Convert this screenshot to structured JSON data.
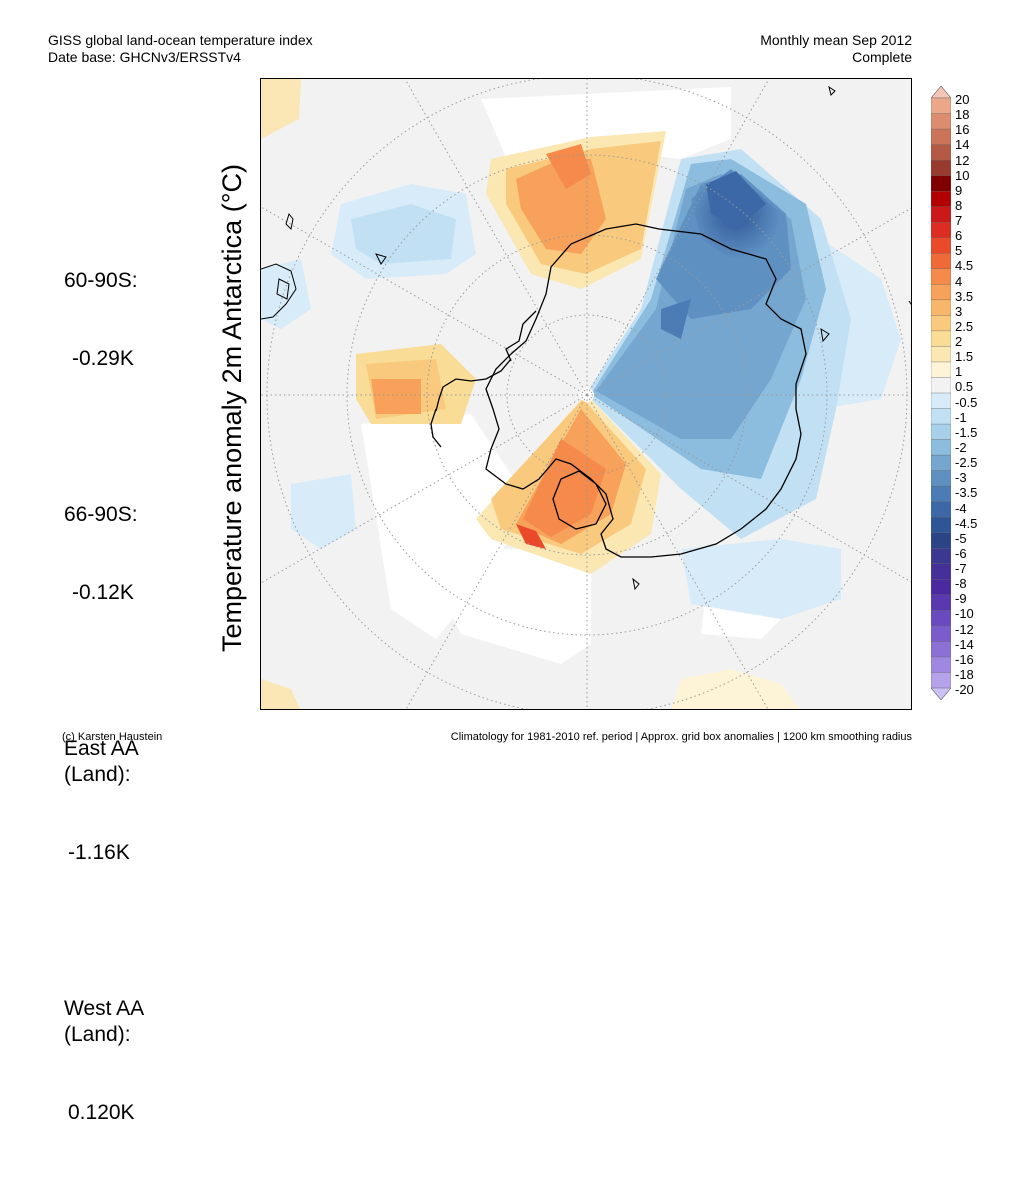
{
  "header": {
    "title_line1": "GISS global land-ocean temperature index",
    "title_line2": "Date base: GHCNv3/ERSSTv4",
    "period_line1": "Monthly mean Sep 2012",
    "period_line2": "Complete"
  },
  "y_axis_label": "Temperature anomaly 2m Antarctica (°C)",
  "stats": [
    {
      "label": "60-90S:",
      "value": "-0.29K"
    },
    {
      "label": "66-90S:",
      "value": "-0.12K"
    },
    {
      "label": "East AA\n(Land):",
      "value": "-1.16K"
    },
    {
      "label": "West AA\n(Land):",
      "value": "0.120K"
    }
  ],
  "colorbar": {
    "labels": [
      "20",
      "18",
      "16",
      "14",
      "12",
      "10",
      "9",
      "8",
      "7",
      "6",
      "5",
      "4.5",
      "4",
      "3.5",
      "3",
      "2.5",
      "2",
      "1.5",
      "1",
      "0.5",
      "-0.5",
      "-1",
      "-1.5",
      "-2",
      "-2.5",
      "-3",
      "-3.5",
      "-4",
      "-4.5",
      "-5",
      "-6",
      "-7",
      "-8",
      "-9",
      "-10",
      "-12",
      "-14",
      "-16",
      "-18",
      "-20"
    ],
    "colors": [
      "#f4c6b8",
      "#eaa78a",
      "#dc8d6e",
      "#cb7458",
      "#b45a44",
      "#9a3a2e",
      "#800000",
      "#b30000",
      "#cc1818",
      "#dd2d22",
      "#ea4a2a",
      "#f06a38",
      "#f58a4a",
      "#f7a15a",
      "#f8b66b",
      "#f9c97e",
      "#f9dc96",
      "#fae7b2",
      "#fdf3d6",
      "#f2f2f2",
      "#d8ebf8",
      "#c2e0f4",
      "#a8d0ea",
      "#8cbcde",
      "#74a6d0",
      "#5e90c2",
      "#4c7cb6",
      "#3c68a8",
      "#2e5596",
      "#2a4486",
      "#3a3890",
      "#45309a",
      "#4b2aa0",
      "#5a38b0",
      "#6a4ac0",
      "#7a5ccc",
      "#8c70d6",
      "#a088e0",
      "#b6a2ea",
      "#ccc0f4"
    ]
  },
  "footer": {
    "left": "(c) Karsten Haustein",
    "right": "Climatology for 1981-2010 ref. period | Approx. grid box anomalies | 1200 km smoothing radius"
  }
}
